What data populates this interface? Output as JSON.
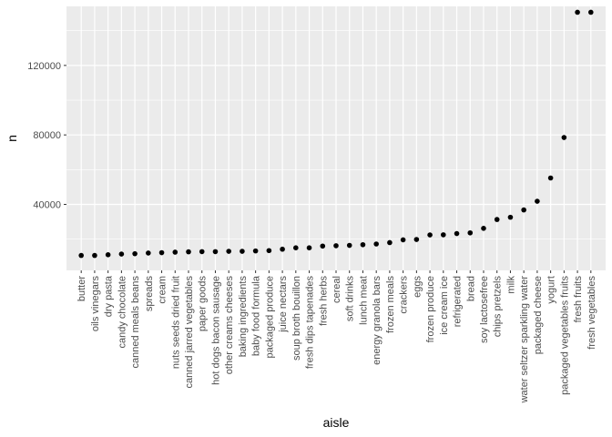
{
  "chart_data": {
    "type": "scatter",
    "xlabel": "aisle",
    "ylabel": "n",
    "ylim": [
      2000,
      154000
    ],
    "y_ticks": [
      40000,
      80000,
      120000
    ],
    "y_tick_labels": [
      "40000",
      "80000",
      "120000"
    ],
    "grid": true,
    "panel_color": "#ebebeb",
    "point_color": "#000000",
    "categories": [
      "butter",
      "oils vinegars",
      "dry pasta",
      "candy chocolate",
      "canned meals beans",
      "spreads",
      "cream",
      "nuts seeds dried fruit",
      "canned jarred vegetables",
      "paper goods",
      "hot dogs bacon sausage",
      "other creams cheeses",
      "baking ingredients",
      "baby food formula",
      "packaged produce",
      "juice nectars",
      "soup broth bouillon",
      "fresh dips tapenades",
      "fresh herbs",
      "cereal",
      "soft drinks",
      "lunch meat",
      "energy granola bars",
      "frozen meals",
      "crackers",
      "eggs",
      "frozen produce",
      "ice cream ice",
      "refrigerated",
      "bread",
      "soy lactosefree",
      "chips pretzels",
      "milk",
      "water seltzer sparkling water",
      "packaged cheese",
      "yogurt",
      "packaged vegetables fruits",
      "fresh fruits",
      "fresh vegetables"
    ],
    "values": [
      10600,
      10600,
      11000,
      11400,
      11600,
      12000,
      12200,
      12500,
      12700,
      12800,
      12800,
      13000,
      13000,
      13200,
      13400,
      14200,
      15000,
      15000,
      16000,
      16200,
      16400,
      16800,
      17200,
      18000,
      19600,
      19800,
      22400,
      22500,
      23200,
      23600,
      26200,
      31300,
      32600,
      36800,
      41800,
      55200,
      78500,
      150600,
      150600
    ]
  }
}
